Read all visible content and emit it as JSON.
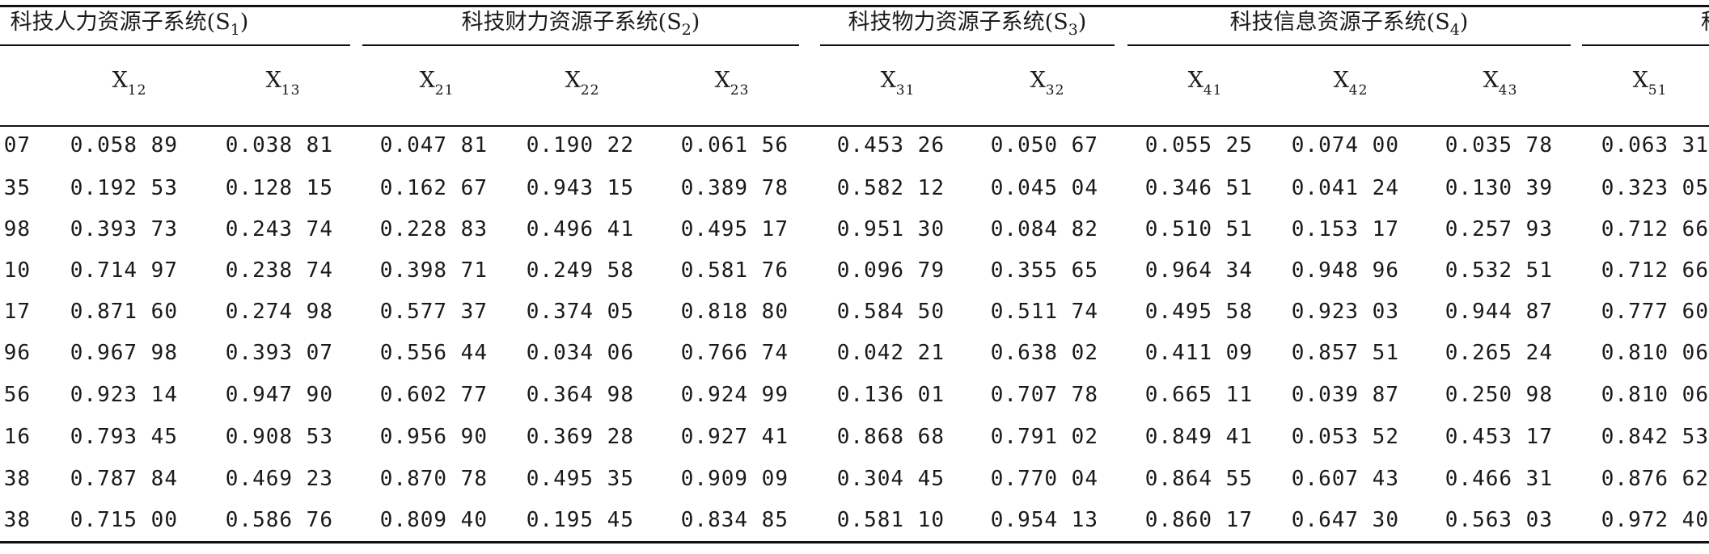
{
  "groups": [
    {
      "text": "科技人力资源子系统(S",
      "sub": "1",
      "close": ")"
    },
    {
      "text": "科技财力资源子系统(S",
      "sub": "2",
      "close": ")"
    },
    {
      "text": "科技物力资源子系统(S",
      "sub": "3",
      "close": ")"
    },
    {
      "text": "科技信息资源子系统(S",
      "sub": "4",
      "close": ")"
    },
    {
      "text": "科技",
      "sub": "",
      "close": ""
    }
  ],
  "columns": [
    {
      "base": "",
      "sub": ""
    },
    {
      "base": "X",
      "sub": "12"
    },
    {
      "base": "X",
      "sub": "13"
    },
    {
      "base": "X",
      "sub": "21"
    },
    {
      "base": "X",
      "sub": "22"
    },
    {
      "base": "X",
      "sub": "23"
    },
    {
      "base": "X",
      "sub": "31"
    },
    {
      "base": "X",
      "sub": "32"
    },
    {
      "base": "X",
      "sub": "41"
    },
    {
      "base": "X",
      "sub": "42"
    },
    {
      "base": "X",
      "sub": "43"
    },
    {
      "base": "X",
      "sub": "51"
    }
  ],
  "rows": [
    [
      "07",
      "0.058 89",
      "0.038 81",
      "0.047 81",
      "0.190 22",
      "0.061 56",
      "0.453 26",
      "0.050 67",
      "0.055 25",
      "0.074 00",
      "0.035 78",
      "0.063 31"
    ],
    [
      "35",
      "0.192 53",
      "0.128 15",
      "0.162 67",
      "0.943 15",
      "0.389 78",
      "0.582 12",
      "0.045 04",
      "0.346 51",
      "0.041 24",
      "0.130 39",
      "0.323 05"
    ],
    [
      "98",
      "0.393 73",
      "0.243 74",
      "0.228 83",
      "0.496 41",
      "0.495 17",
      "0.951 30",
      "0.084 82",
      "0.510 51",
      "0.153 17",
      "0.257 93",
      "0.712 66"
    ],
    [
      "10",
      "0.714 97",
      "0.238 74",
      "0.398 71",
      "0.249 58",
      "0.581 76",
      "0.096 79",
      "0.355 65",
      "0.964 34",
      "0.948 96",
      "0.532 51",
      "0.712 66"
    ],
    [
      "17",
      "0.871 60",
      "0.274 98",
      "0.577 37",
      "0.374 05",
      "0.818 80",
      "0.584 50",
      "0.511 74",
      "0.495 58",
      "0.923 03",
      "0.944 87",
      "0.777 60"
    ],
    [
      "96",
      "0.967 98",
      "0.393 07",
      "0.556 44",
      "0.034 06",
      "0.766 74",
      "0.042 21",
      "0.638 02",
      "0.411 09",
      "0.857 51",
      "0.265 24",
      "0.810 06"
    ],
    [
      "56",
      "0.923 14",
      "0.947 90",
      "0.602 77",
      "0.364 98",
      "0.924 99",
      "0.136 01",
      "0.707 78",
      "0.665 11",
      "0.039 87",
      "0.250 98",
      "0.810 06"
    ],
    [
      "16",
      "0.793 45",
      "0.908 53",
      "0.956 90",
      "0.369 28",
      "0.927 41",
      "0.868 68",
      "0.791 02",
      "0.849 41",
      "0.053 52",
      "0.453 17",
      "0.842 53"
    ],
    [
      "38",
      "0.787 84",
      "0.469 23",
      "0.870 78",
      "0.495 35",
      "0.909 09",
      "0.304 45",
      "0.770 04",
      "0.864 55",
      "0.607 43",
      "0.466 31",
      "0.876 62"
    ],
    [
      "38",
      "0.715 00",
      "0.586 76",
      "0.809 40",
      "0.195 45",
      "0.834 85",
      "0.581 10",
      "0.954 13",
      "0.860 17",
      "0.647 30",
      "0.563 03",
      "0.972 40"
    ]
  ]
}
